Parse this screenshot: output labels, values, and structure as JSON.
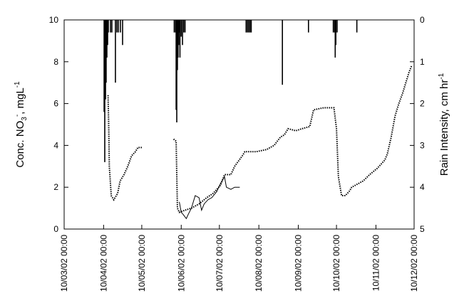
{
  "chart_data": {
    "type": "line",
    "ylabel": [
      "Conc. NO",
      "3",
      "-",
      ", mgL",
      "-1"
    ],
    "y2label": [
      "Rain Intensity, cm hr",
      "-1"
    ],
    "xlim": [
      "10/03/02 00:00",
      "10/12/02 00:00"
    ],
    "xticks": [
      "10/03/02 00:00",
      "10/04/02 00:00",
      "10/05/02 00:00",
      "10/06/02 00:00",
      "10/07/02 00:00",
      "10/08/02 00:00",
      "10/09/02 00:00",
      "10/10/02 00:00",
      "10/11/02 00:00",
      "10/12/02 00:00"
    ],
    "ylim": [
      0,
      10
    ],
    "yticks": [
      0,
      2,
      4,
      6,
      8,
      10
    ],
    "y2lim": [
      0,
      5
    ],
    "y2ticks": [
      0,
      1,
      2,
      3,
      4,
      5
    ],
    "y2_inverted": true,
    "series": [
      {
        "type": "line",
        "style": "dotted",
        "color": "#000000",
        "x": [
          "13/04/02 12:00",
          "14/04/02 00:00",
          "14/04/02 12:00",
          "16/04/02 00:00",
          "18/04/02 00:00",
          "21/04/02 00:00",
          "23/04/02 00:00",
          "26/04/02 00:00",
          "29/04/02 00:00",
          "02/05/02 00:00",
          "05/05/02 00:00",
          "07/05/02 00:00",
          "10/05/02 00:00",
          "20/05/02 00:00",
          "04/06/02 00:00",
          "06/06/02 00:00",
          "07/06/02 00:00",
          "08/06/02 12:00",
          "13/06/02 00:00",
          "18/06/02 00:00",
          "24/06/02 00:00",
          "30/06/02 00:00",
          "05/07/02 00:00",
          "11/07/02 00:00",
          "14/07/02 00:00",
          "19/07/02 00:00",
          "22/07/02 00:00",
          "28/07/02 00:00",
          "30/07/02 00:00",
          "08/08/02 00:00",
          "16/08/02 00:00",
          "22/08/02 00:00",
          "27/08/02 00:00",
          "30/08/02 00:00",
          "02/09/02 00:00",
          "08/09/02 00:00",
          "13/09/02 00:00",
          "19/09/02 00:00",
          "22/09/02 00:00",
          "30/09/02 00:00",
          "08/10/02 00:00",
          "10/10/02 00:00",
          "11/10/02 12:00",
          "14/10/02 00:00",
          "17/10/02 00:00",
          "20/10/02 00:00",
          "22/10/02 00:00",
          "25/10/02 00:00",
          "31/10/02 00:00",
          "05/11/02 00:00",
          "11/11/02 00:00",
          "17/11/02 00:00",
          "19/11/02 00:00",
          "22/11/02 00:00",
          "25/11/02 00:00",
          "28/11/02 00:00",
          "01/12/02 00:00",
          "03/12/02 00:00",
          "06/12/02 00:00",
          "08/12/02 00:00"
        ],
        "values": [
          6.4,
          5.0,
          3.0,
          1.6,
          1.4,
          1.7,
          2.3,
          2.6,
          3.0,
          3.5,
          3.7,
          3.9,
          3.9,
          null,
          4.3,
          4.2,
          1.0,
          0.8,
          0.9,
          1.0,
          1.2,
          1.5,
          1.7,
          2.1,
          2.6,
          2.6,
          3.0,
          3.5,
          3.7,
          3.7,
          3.8,
          4.0,
          4.4,
          4.5,
          4.8,
          4.7,
          4.8,
          4.9,
          5.7,
          5.8,
          5.8,
          4.8,
          2.5,
          1.6,
          1.6,
          1.8,
          2.0,
          2.1,
          2.3,
          2.6,
          2.9,
          3.3,
          3.6,
          4.4,
          5.4,
          6.0,
          6.5,
          6.9,
          7.5,
          7.8
        ]
      },
      {
        "type": "line",
        "style": "solid",
        "color": "#000000",
        "x": [
          "08/06/02 12:00",
          "10/06/02 00:00",
          "11/06/02 12:00",
          "14/06/02 00:00",
          "15/06/02 12:00",
          "18/06/02 00:00",
          "21/06/02 00:00",
          "24/06/02 00:00",
          "26/06/02 00:00",
          "28/06/02 00:00",
          "01/07/02 00:00",
          "04/07/02 00:00",
          "08/07/02 00:00",
          "11/07/02 00:00",
          "14/07/02 00:00",
          "15/07/02 12:00",
          "19/07/02 00:00",
          "22/07/02 00:00",
          "26/07/02 00:00"
        ],
        "values": [
          1.3,
          0.8,
          0.7,
          0.5,
          0.7,
          1.0,
          1.6,
          1.5,
          0.9,
          1.2,
          1.4,
          1.5,
          1.8,
          2.2,
          2.5,
          2.0,
          1.9,
          2.0,
          2.0
        ]
      },
      {
        "type": "bar",
        "axis": "y2",
        "color": "#000000",
        "x": [
          "10/04/02 10:00",
          "10/04/02 22:00",
          "11/04/02 12:00",
          "12/04/02 00:00",
          "12/04/02 14:00",
          "13/04/02 04:00",
          "13/04/02 17:00",
          "15/04/02 10:00",
          "16/04/02 12:00",
          "19/04/02 07:00",
          "20/04/02 10:00",
          "21/04/02 14:00",
          "23/04/02 05:00",
          "24/04/02 22:00",
          "04/06/02 12:00",
          "05/06/02 12:00",
          "06/06/02 00:00",
          "06/06/02 12:00",
          "07/06/02 00:00",
          "07/06/02 12:00",
          "08/06/02 00:00",
          "08/06/02 12:00",
          "09/06/02 00:00",
          "10/06/02 00:00",
          "11/06/02 00:00",
          "12/06/02 00:00",
          "13/06/02 00:00",
          "31/07/02 00:00",
          "01/08/02 00:00",
          "02/08/02 00:00",
          "03/08/02 00:00",
          "04/08/02 00:00",
          "28/08/02 12:00",
          "18/09/02 00:00",
          "07/10/02 12:00",
          "08/10/02 12:00",
          "09/10/02 00:00",
          "09/10/02 12:00",
          "10/10/02 12:00",
          "26/10/02 00:00"
        ],
        "values": [
          2.2,
          3.4,
          1.9,
          1.5,
          0.9,
          0.6,
          0.3,
          0.3,
          0.3,
          1.5,
          0.3,
          0.3,
          0.3,
          0.6,
          0.3,
          0.3,
          2.15,
          2.45,
          1.2,
          0.9,
          0.6,
          0.3,
          0.9,
          0.4,
          0.6,
          0.3,
          0.3,
          0.3,
          0.3,
          0.3,
          0.3,
          0.3,
          1.55,
          0.3,
          0.3,
          0.3,
          0.9,
          0.6,
          0.3,
          0.3
        ]
      }
    ]
  }
}
